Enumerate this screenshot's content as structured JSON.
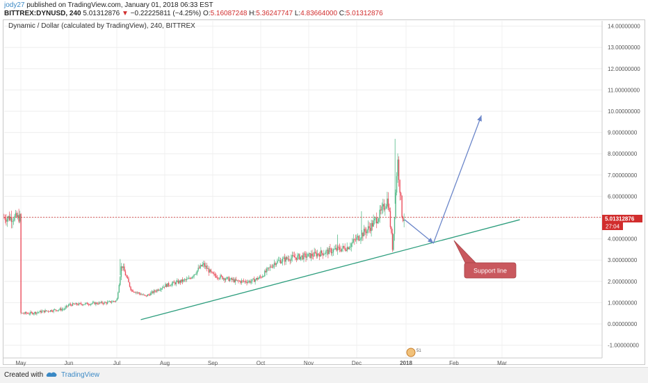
{
  "header": {
    "user": "jody27",
    "published": "published on TradingView.com, January 01, 2018 06:33 EST",
    "symbol_line": "BITTREX:DYNUSD, 240",
    "last_price": "5.01312876",
    "change": "−0.22225811 (−4.25%)",
    "ohlc_prefix_o": "O:",
    "o": "5.16087248",
    "ohlc_prefix_h": "H:",
    "h": "5.36247747",
    "ohlc_prefix_l": "L:",
    "l": "4.83664000",
    "ohlc_prefix_c": "C:",
    "c": "5.01312876"
  },
  "chart_title": "Dynamic / Dollar (calculated by TradingView), 240, BITTREX",
  "price_label": "5.01312876",
  "countdown_label": "27:04",
  "annotation": "Support line",
  "footer": {
    "created_with": "Created with",
    "brand": "TradingView"
  },
  "colors": {
    "up": "#53b987",
    "down": "#eb4d5c",
    "support_line": "#2e9e7e",
    "arrow": "#6b86c9",
    "price_line": "#d12d2d",
    "callout_fill": "#c9585e"
  },
  "chart_data": {
    "type": "candlestick",
    "title": "Dynamic / Dollar (calculated by TradingView), 240, BITTREX",
    "y_ticks": [
      "14.00000000",
      "13.00000000",
      "12.00000000",
      "11.00000000",
      "10.00000000",
      "9.00000000",
      "8.00000000",
      "7.00000000",
      "6.00000000",
      "5.00000000",
      "4.00000000",
      "3.00000000",
      "2.00000000",
      "1.00000000",
      "0.00000000",
      "-1.00000000"
    ],
    "ylim": [
      -1.5,
      14.3
    ],
    "x_ticks": [
      "May",
      "Jun",
      "Jul",
      "Aug",
      "Sep",
      "Oct",
      "Nov",
      "Dec",
      "2018",
      "Feb",
      "Mar"
    ],
    "last_price": 5.01312876,
    "series": [
      {
        "x": [
          0.0,
          0.2,
          0.5,
          0.9,
          1.0,
          1.8,
          2.0,
          2.1,
          2.3,
          2.6,
          3.0,
          3.5,
          3.8,
          4.0,
          4.5,
          4.8,
          5.0,
          5.3,
          5.6,
          6.0,
          6.4,
          6.8,
          7.0,
          7.3,
          7.5,
          7.65,
          7.75,
          7.85,
          7.95,
          8.0
        ],
        "y": [
          0.5,
          0.5,
          0.6,
          0.7,
          0.9,
          1.0,
          1.1,
          2.8,
          1.6,
          1.3,
          1.8,
          2.1,
          2.8,
          2.3,
          2.0,
          2.0,
          2.2,
          2.9,
          3.1,
          3.2,
          3.4,
          3.6,
          4.0,
          4.6,
          5.2,
          5.9,
          3.5,
          7.8,
          5.0,
          5.0
        ]
      }
    ],
    "support_line": {
      "from": {
        "x": 2.5,
        "y": 0.2
      },
      "to": {
        "x": 10.4,
        "y": 4.9
      }
    },
    "projection_arrow": [
      {
        "x": 8.0,
        "y": 4.9
      },
      {
        "x": 8.6,
        "y": 3.8
      },
      {
        "x": 9.6,
        "y": 9.8
      }
    ]
  }
}
